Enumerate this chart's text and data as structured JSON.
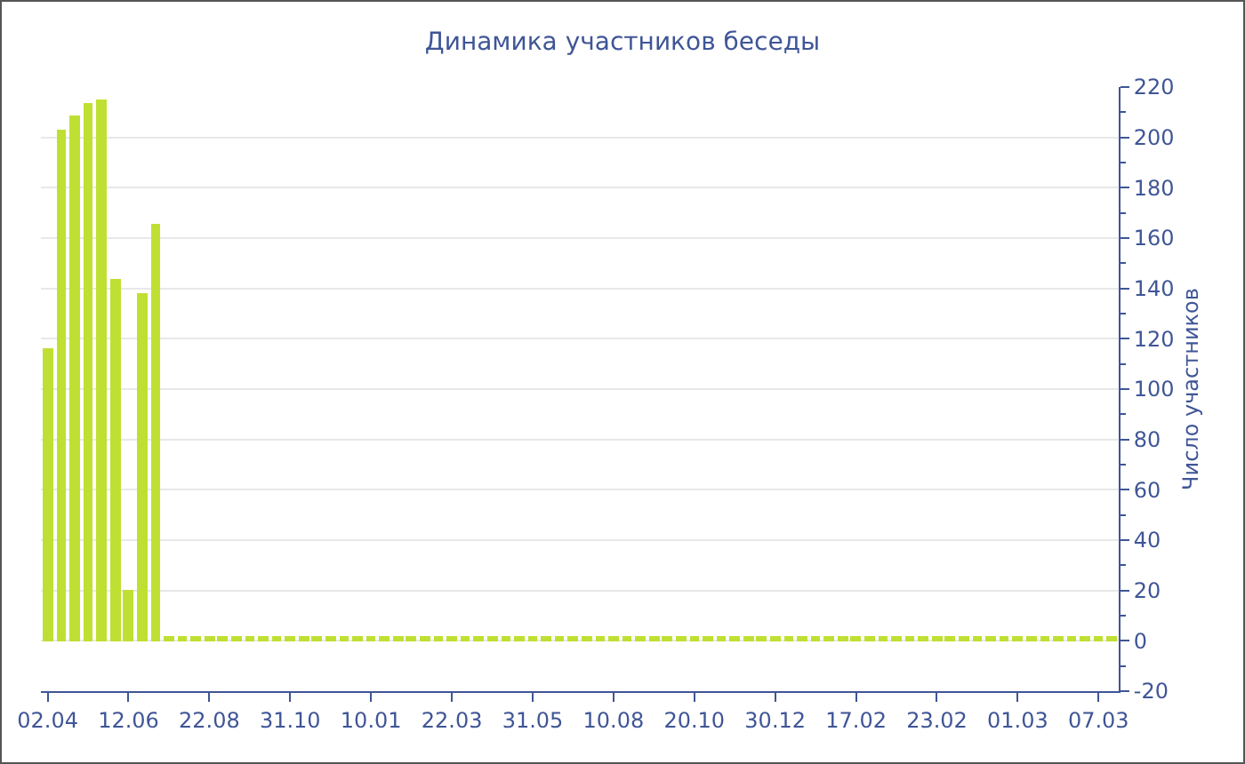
{
  "chart_data": {
    "type": "bar",
    "title": "Динамика участников беседы",
    "ylabel": "Число участников",
    "categories": [
      "02.04",
      null,
      null,
      null,
      null,
      null,
      "12.06",
      null,
      null,
      null,
      null,
      null,
      "22.08",
      null,
      null,
      null,
      null,
      null,
      "31.10",
      null,
      null,
      null,
      null,
      null,
      "10.01",
      null,
      null,
      null,
      null,
      null,
      "22.03",
      null,
      null,
      null,
      null,
      null,
      "31.05",
      null,
      null,
      null,
      null,
      null,
      "10.08",
      null,
      null,
      null,
      null,
      null,
      "20.10",
      null,
      null,
      null,
      null,
      null,
      "30.12",
      null,
      null,
      null,
      null,
      null,
      "17.02",
      null,
      null,
      null,
      null,
      null,
      "23.02",
      null,
      null,
      null,
      null,
      null,
      "01.03",
      null,
      null,
      null,
      null,
      null,
      "07.03",
      null
    ],
    "values": [
      116,
      203,
      209,
      214,
      215,
      144,
      20,
      138,
      166,
      2,
      2,
      2,
      2,
      2,
      2,
      2,
      2,
      2,
      2,
      2,
      2,
      2,
      2,
      2,
      2,
      2,
      2,
      2,
      2,
      2,
      2,
      2,
      2,
      2,
      2,
      2,
      2,
      2,
      2,
      2,
      2,
      2,
      2,
      2,
      2,
      2,
      2,
      2,
      2,
      2,
      2,
      2,
      2,
      2,
      2,
      2,
      2,
      2,
      2,
      2,
      2,
      2,
      2,
      2,
      2,
      2,
      2,
      2,
      2,
      2,
      2,
      2,
      2,
      2,
      2,
      2,
      2,
      2,
      2,
      2
    ],
    "color": "#bfe032",
    "ylim": [
      -20,
      220
    ],
    "yticks": [
      -20,
      0,
      20,
      40,
      60,
      80,
      100,
      120,
      140,
      160,
      180,
      200,
      220
    ],
    "grid": "y"
  }
}
